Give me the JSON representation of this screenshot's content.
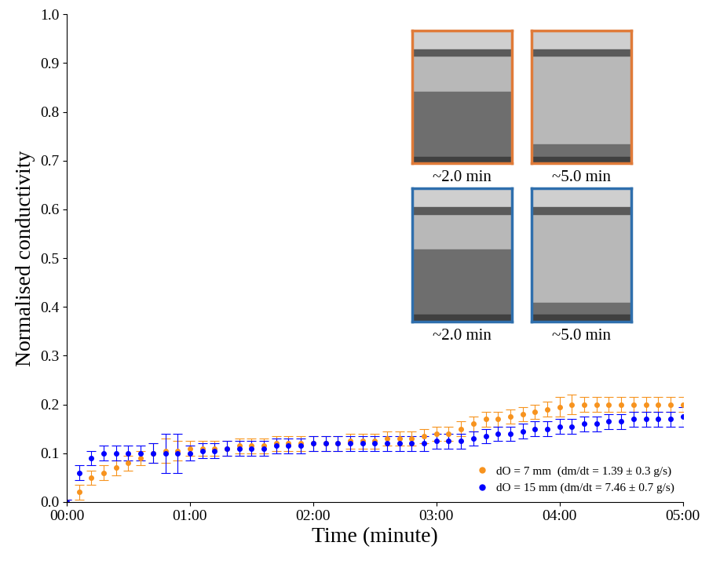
{
  "chart_data": {
    "type": "scatter",
    "x_label": "Time (minute)",
    "y_label": "Normalised conductivity",
    "xlim": [
      0,
      5
    ],
    "xticks": [
      {
        "value": 0,
        "label": "00:00"
      },
      {
        "value": 1,
        "label": "01:00"
      },
      {
        "value": 2,
        "label": "02:00"
      },
      {
        "value": 3,
        "label": "03:00"
      },
      {
        "value": 4,
        "label": "04:00"
      },
      {
        "value": 5,
        "label": "05:00"
      }
    ],
    "ylim": [
      0,
      1
    ],
    "yticks": [
      {
        "value": 0,
        "label": "0.0"
      },
      0.1,
      0.2,
      0.3,
      0.4,
      0.5,
      0.6,
      0.7,
      0.8,
      0.9,
      {
        "value": 1,
        "label": "1.0"
      }
    ],
    "legend": "lower right",
    "x": [
      0.0,
      0.1,
      0.2,
      0.3,
      0.4,
      0.5,
      0.6,
      0.7,
      0.8,
      0.9,
      1.0,
      1.1,
      1.2,
      1.3,
      1.4,
      1.5,
      1.6,
      1.7,
      1.8,
      1.9,
      2.0,
      2.1,
      2.2,
      2.3,
      2.4,
      2.5,
      2.6,
      2.7,
      2.8,
      2.9,
      3.0,
      3.1,
      3.2,
      3.3,
      3.4,
      3.5,
      3.6,
      3.7,
      3.8,
      3.9,
      4.0,
      4.1,
      4.2,
      4.3,
      4.4,
      4.5,
      4.6,
      4.7,
      4.8,
      4.9,
      5.0
    ],
    "series": [
      {
        "name": "dO = 7 mm  (dm/dt = 1.39 ± 0.3 g/s)",
        "color": "#f7931e",
        "marker": "o",
        "values": [
          0.0,
          0.02,
          0.05,
          0.06,
          0.07,
          0.08,
          0.09,
          0.1,
          0.105,
          0.105,
          0.11,
          0.11,
          0.11,
          0.11,
          0.115,
          0.115,
          0.115,
          0.12,
          0.12,
          0.12,
          0.12,
          0.12,
          0.12,
          0.125,
          0.125,
          0.125,
          0.13,
          0.13,
          0.13,
          0.135,
          0.14,
          0.14,
          0.15,
          0.16,
          0.17,
          0.17,
          0.175,
          0.18,
          0.185,
          0.19,
          0.195,
          0.2,
          0.2,
          0.2,
          0.2,
          0.2,
          0.2,
          0.2,
          0.2,
          0.2,
          0.2
        ],
        "errors": [
          0.005,
          0.015,
          0.015,
          0.015,
          0.015,
          0.015,
          0.015,
          0.02,
          0.025,
          0.02,
          0.015,
          0.015,
          0.015,
          0.015,
          0.015,
          0.015,
          0.015,
          0.015,
          0.015,
          0.015,
          0.015,
          0.015,
          0.015,
          0.015,
          0.015,
          0.015,
          0.015,
          0.015,
          0.015,
          0.015,
          0.015,
          0.015,
          0.015,
          0.015,
          0.015,
          0.015,
          0.015,
          0.015,
          0.015,
          0.015,
          0.02,
          0.02,
          0.015,
          0.015,
          0.015,
          0.015,
          0.015,
          0.015,
          0.015,
          0.015,
          0.015
        ]
      },
      {
        "name": "dO = 15 mm (dm/dt = 7.46 ± 0.7 g/s)",
        "color": "#0000ff",
        "marker": "o",
        "values": [
          0.0,
          0.06,
          0.09,
          0.1,
          0.1,
          0.1,
          0.1,
          0.1,
          0.1,
          0.1,
          0.1,
          0.105,
          0.105,
          0.11,
          0.11,
          0.11,
          0.11,
          0.115,
          0.115,
          0.115,
          0.12,
          0.12,
          0.12,
          0.12,
          0.12,
          0.12,
          0.12,
          0.12,
          0.12,
          0.12,
          0.125,
          0.125,
          0.125,
          0.13,
          0.135,
          0.14,
          0.14,
          0.145,
          0.15,
          0.15,
          0.155,
          0.155,
          0.16,
          0.16,
          0.165,
          0.165,
          0.17,
          0.17,
          0.17,
          0.17,
          0.175
        ],
        "errors": [
          0.005,
          0.015,
          0.015,
          0.015,
          0.015,
          0.015,
          0.015,
          0.02,
          0.04,
          0.04,
          0.015,
          0.015,
          0.015,
          0.015,
          0.015,
          0.015,
          0.015,
          0.015,
          0.015,
          0.015,
          0.015,
          0.015,
          0.015,
          0.015,
          0.015,
          0.015,
          0.015,
          0.015,
          0.015,
          0.015,
          0.015,
          0.015,
          0.015,
          0.015,
          0.015,
          0.015,
          0.015,
          0.015,
          0.015,
          0.015,
          0.015,
          0.015,
          0.015,
          0.015,
          0.015,
          0.015,
          0.015,
          0.015,
          0.015,
          0.015,
          0.02
        ]
      }
    ],
    "insets": [
      {
        "color": "#e07b39",
        "captions": [
          "~2.0 min",
          "~5.0 min"
        ]
      },
      {
        "color": "#2f6fad",
        "captions": [
          "~2.0 min",
          "~5.0 min"
        ]
      }
    ]
  }
}
